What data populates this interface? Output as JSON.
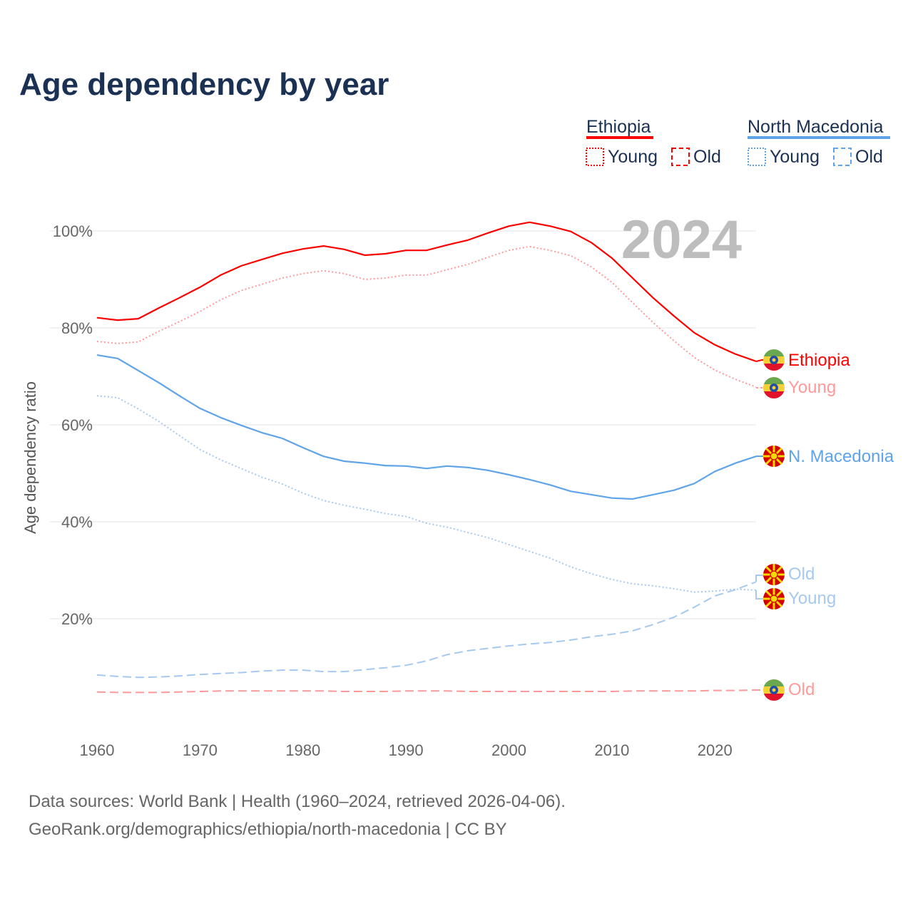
{
  "title": "Age dependency by year",
  "year_watermark": "2024",
  "legend": {
    "groups": [
      {
        "name": "Ethiopia",
        "color": "#ff0000",
        "items": [
          "Young",
          "Old"
        ]
      },
      {
        "name": "North Macedonia",
        "color": "#5fa3e8",
        "items": [
          "Young",
          "Old"
        ]
      }
    ]
  },
  "end_labels": {
    "eth_total": "Ethiopia",
    "eth_young": "Young",
    "mkd_total": "N. Macedonia",
    "mkd_old": "Old",
    "mkd_young": "Young",
    "eth_old": "Old"
  },
  "footer": {
    "line1": "Data sources: World Bank | Health (1960–2024, retrieved 2026-04-06).",
    "line2": "GeoRank.org/demographics/ethiopia/north-macedonia | CC BY"
  },
  "chart_data": {
    "type": "line",
    "title": "Age dependency by year",
    "xlabel": "",
    "ylabel": "Age dependency ratio",
    "xlim": [
      1960,
      2024
    ],
    "ylim": [
      0,
      105
    ],
    "grid": true,
    "legend_placement": "top-right",
    "x_ticks": [
      1960,
      1970,
      1980,
      1990,
      2000,
      2010,
      2020
    ],
    "y_ticks": [
      20,
      40,
      60,
      80,
      100
    ],
    "y_tick_labels": [
      "20%",
      "40%",
      "60%",
      "80%",
      "100%"
    ],
    "x": [
      1960,
      1962,
      1964,
      1966,
      1968,
      1970,
      1972,
      1974,
      1976,
      1978,
      1980,
      1982,
      1984,
      1986,
      1988,
      1990,
      1992,
      1994,
      1996,
      1998,
      2000,
      2002,
      2004,
      2006,
      2008,
      2010,
      2012,
      2014,
      2016,
      2018,
      2020,
      2022,
      2024
    ],
    "series": [
      {
        "name": "Ethiopia",
        "key": "eth_total",
        "color": "#ff0000",
        "style": "solid",
        "values": [
          82.1,
          81.6,
          81.9,
          84.1,
          86.2,
          88.4,
          90.9,
          92.8,
          94.1,
          95.4,
          96.3,
          96.9,
          96.2,
          95.0,
          95.3,
          96.0,
          96.0,
          97.1,
          98.1,
          99.6,
          101.0,
          101.8,
          101.0,
          99.9,
          97.6,
          94.4,
          90.3,
          86.2,
          82.5,
          79.0,
          76.5,
          74.6,
          73.1
        ]
      },
      {
        "name": "Ethiopia Young",
        "key": "eth_young",
        "color": "#ff9a9a",
        "style": "dotted",
        "values": [
          77.2,
          76.8,
          77.1,
          79.3,
          81.3,
          83.4,
          85.8,
          87.7,
          89.0,
          90.3,
          91.2,
          91.8,
          91.2,
          90.0,
          90.3,
          90.9,
          90.9,
          92.0,
          93.1,
          94.6,
          96.0,
          96.8,
          96.0,
          94.9,
          92.6,
          89.4,
          85.2,
          81.1,
          77.4,
          73.9,
          71.3,
          69.4,
          67.8
        ]
      },
      {
        "name": "Ethiopia Old",
        "key": "eth_old",
        "color": "#ff9a9a",
        "style": "dashed",
        "values": [
          4.9,
          4.8,
          4.8,
          4.8,
          4.9,
          5.0,
          5.1,
          5.1,
          5.1,
          5.1,
          5.1,
          5.1,
          5.0,
          5.0,
          5.0,
          5.1,
          5.1,
          5.1,
          5.0,
          5.0,
          5.0,
          5.0,
          5.0,
          5.0,
          5.0,
          5.0,
          5.1,
          5.1,
          5.1,
          5.1,
          5.2,
          5.2,
          5.3
        ]
      },
      {
        "name": "N. Macedonia",
        "key": "mkd_total",
        "color": "#5fa3e8",
        "style": "solid",
        "values": [
          74.4,
          73.7,
          71.2,
          68.7,
          66.0,
          63.4,
          61.5,
          59.9,
          58.4,
          57.2,
          55.3,
          53.5,
          52.5,
          52.1,
          51.6,
          51.5,
          51.0,
          51.5,
          51.2,
          50.6,
          49.7,
          48.7,
          47.6,
          46.3,
          45.6,
          44.9,
          44.7,
          45.6,
          46.5,
          47.9,
          50.4,
          52.1,
          53.5
        ]
      },
      {
        "name": "N. Macedonia Young",
        "key": "mkd_young",
        "color": "#a6c9f0",
        "style": "dotted",
        "values": [
          66.0,
          65.6,
          63.3,
          60.7,
          57.8,
          54.9,
          52.8,
          51.0,
          49.2,
          47.8,
          45.9,
          44.4,
          43.4,
          42.6,
          41.7,
          41.1,
          39.7,
          38.9,
          37.8,
          36.7,
          35.3,
          33.9,
          32.5,
          30.7,
          29.3,
          28.1,
          27.2,
          26.8,
          26.2,
          25.5,
          25.7,
          26.1,
          25.9
        ]
      },
      {
        "name": "N. Macedonia Old",
        "key": "mkd_old",
        "color": "#a6c9f0",
        "style": "dashed",
        "values": [
          8.4,
          8.1,
          7.9,
          8.0,
          8.2,
          8.5,
          8.7,
          8.9,
          9.2,
          9.4,
          9.4,
          9.1,
          9.1,
          9.5,
          9.9,
          10.4,
          11.3,
          12.6,
          13.4,
          13.9,
          14.4,
          14.8,
          15.1,
          15.6,
          16.3,
          16.8,
          17.5,
          18.8,
          20.3,
          22.4,
          24.7,
          26.0,
          27.6
        ]
      }
    ]
  }
}
